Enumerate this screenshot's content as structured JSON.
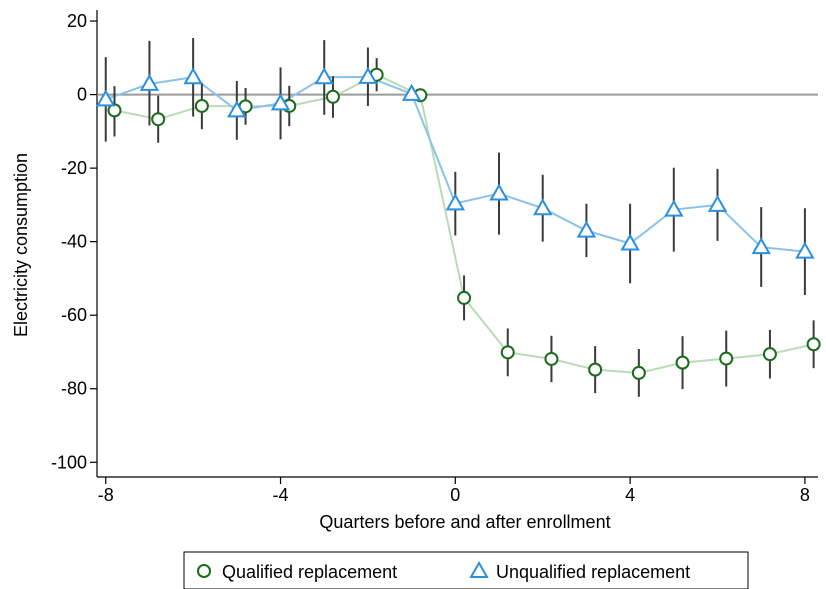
{
  "chart_data": {
    "type": "scatter",
    "xlabel": "Quarters before and after enrollment",
    "ylabel": "Electricity consumption",
    "xlim": [
      -8.2,
      8.3
    ],
    "ylim": [
      -104,
      23
    ],
    "xticks": [
      -8,
      -4,
      0,
      4,
      8
    ],
    "yticks": [
      20,
      0,
      -20,
      -40,
      -60,
      -80,
      -100
    ],
    "reference_line_y": 0,
    "grid": false,
    "legend_position": "bottom",
    "series": [
      {
        "name": "Qualified replacement",
        "marker": "circle",
        "color": "#1a6b1a",
        "line_color": "#b9dcb6",
        "x": [
          -7.8,
          -6.8,
          -5.8,
          -4.8,
          -3.8,
          -2.8,
          -1.8,
          -0.8,
          0.2,
          1.2,
          2.2,
          3.2,
          4.2,
          5.2,
          6.2,
          7.2,
          8.2
        ],
        "y": [
          -4.3,
          -6.7,
          -3.1,
          -3.2,
          -3.1,
          -0.6,
          5.4,
          -0.2,
          -55.3,
          -70.1,
          -71.9,
          -74.8,
          -75.7,
          -72.9,
          -71.8,
          -70.6,
          -67.9
        ],
        "ci_low": [
          -11.4,
          -13.1,
          -9.4,
          -8.2,
          -8.6,
          -6.3,
          0.9,
          -0.6,
          -61.4,
          -76.6,
          -78.2,
          -81.2,
          -82.2,
          -80.1,
          -79.4,
          -77.2,
          -74.4
        ],
        "ci_high": [
          2.3,
          -0.3,
          3.2,
          1.8,
          2.4,
          5.0,
          9.9,
          0.2,
          -49.2,
          -63.6,
          -65.6,
          -68.4,
          -69.2,
          -65.7,
          -64.2,
          -64.0,
          -61.4
        ]
      },
      {
        "name": "Unqualified replacement",
        "marker": "triangle",
        "color": "#2b8fe0",
        "line_color": "#8cc2ea",
        "x": [
          -8,
          -7,
          -6,
          -5,
          -4,
          -3,
          -2,
          -1,
          0,
          1,
          2,
          3,
          4,
          5,
          6,
          7,
          8
        ],
        "y": [
          -1.3,
          2.9,
          4.7,
          -4.3,
          -2.4,
          4.7,
          4.8,
          0.2,
          -29.6,
          -26.9,
          -30.9,
          -37.0,
          -40.5,
          -31.3,
          -30.0,
          -41.5,
          -42.7
        ],
        "ci_low": [
          -12.8,
          -8.4,
          -6.0,
          -12.3,
          -12.2,
          -5.5,
          -3.1,
          -0.5,
          -38.3,
          -38.1,
          -40.0,
          -44.2,
          -51.3,
          -42.7,
          -39.8,
          -52.3,
          -54.5
        ],
        "ci_high": [
          10.2,
          14.6,
          15.4,
          3.7,
          7.4,
          14.8,
          12.8,
          0.8,
          -21.0,
          -15.8,
          -21.8,
          -29.7,
          -29.7,
          -19.9,
          -20.2,
          -30.6,
          -30.9
        ]
      }
    ]
  }
}
